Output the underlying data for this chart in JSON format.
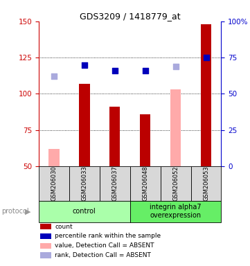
{
  "title": "GDS3209 / 1418779_at",
  "samples": [
    "GSM206030",
    "GSM206033",
    "GSM206037",
    "GSM206048",
    "GSM206052",
    "GSM206053"
  ],
  "group_labels": [
    "control",
    "integrin alpha7\noverexpression"
  ],
  "group_colors": [
    "#aaffaa",
    "#66ee66"
  ],
  "bar_values": [
    null,
    107,
    91,
    86,
    null,
    148
  ],
  "bar_color_present": "#bb0000",
  "bar_values_absent": [
    62,
    null,
    null,
    null,
    103,
    null
  ],
  "bar_color_absent": "#ffaaaa",
  "percentile_values": [
    null,
    120,
    116,
    116,
    null,
    125
  ],
  "percentile_color_present": "#0000bb",
  "percentile_values_absent": [
    112,
    null,
    null,
    null,
    119,
    null
  ],
  "percentile_color_absent": "#aaaadd",
  "ylim_left": [
    50,
    150
  ],
  "ylim_right": [
    0,
    100
  ],
  "yticks_left": [
    50,
    75,
    100,
    125,
    150
  ],
  "yticks_right": [
    0,
    25,
    50,
    75,
    100
  ],
  "ytick_labels_right": [
    "0",
    "25",
    "50",
    "75",
    "100%"
  ],
  "left_axis_color": "#cc0000",
  "right_axis_color": "#0000cc",
  "bar_width": 0.35,
  "figsize": [
    3.61,
    3.84
  ],
  "dpi": 100,
  "legend_items": [
    {
      "color": "#bb0000",
      "label": "count"
    },
    {
      "color": "#0000bb",
      "label": "percentile rank within the sample"
    },
    {
      "color": "#ffaaaa",
      "label": "value, Detection Call = ABSENT"
    },
    {
      "color": "#aaaadd",
      "label": "rank, Detection Call = ABSENT"
    }
  ]
}
